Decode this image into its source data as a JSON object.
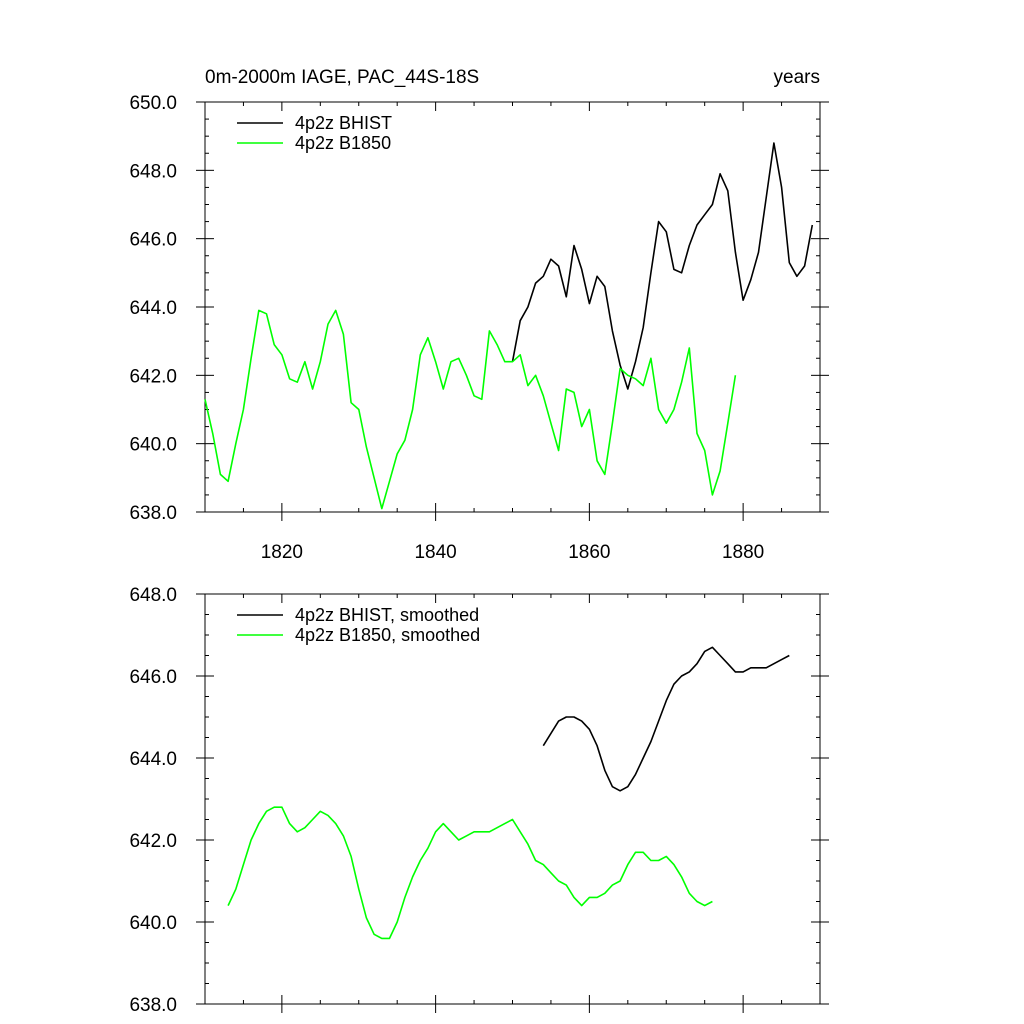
{
  "figure": {
    "title_left": "0m-2000m IAGE, PAC_44S-18S",
    "title_right": "years"
  },
  "chart_data": [
    {
      "type": "line",
      "title": "0m-2000m IAGE, PAC_44S-18S",
      "units": "years",
      "xlim": [
        1810,
        1890
      ],
      "ylim": [
        638,
        650
      ],
      "x_ticks": [
        "1820",
        "1840",
        "1860",
        "1880"
      ],
      "y_ticks": [
        "638.0",
        "640.0",
        "642.0",
        "644.0",
        "646.0",
        "648.0",
        "650.0"
      ],
      "grid": false,
      "legend_position": "top-left",
      "series": [
        {
          "name": "4p2z BHIST",
          "color": "#000000",
          "x": [
            1850,
            1851,
            1852,
            1853,
            1854,
            1855,
            1856,
            1857,
            1858,
            1859,
            1860,
            1861,
            1862,
            1863,
            1864,
            1865,
            1866,
            1867,
            1868,
            1869,
            1870,
            1871,
            1872,
            1873,
            1874,
            1875,
            1876,
            1877,
            1878,
            1879,
            1880,
            1881,
            1882,
            1883,
            1884,
            1885,
            1886,
            1887,
            1888,
            1889
          ],
          "y": [
            642.4,
            643.6,
            644.0,
            644.7,
            644.9,
            645.4,
            645.2,
            644.3,
            645.8,
            645.1,
            644.1,
            644.9,
            644.6,
            643.3,
            642.3,
            641.6,
            642.4,
            643.4,
            645.0,
            646.5,
            646.2,
            645.1,
            645.0,
            645.8,
            646.4,
            646.7,
            647.0,
            647.9,
            647.4,
            645.6,
            644.2,
            644.8,
            645.6,
            647.2,
            648.8,
            647.5,
            645.3,
            644.9,
            645.2,
            646.4
          ]
        },
        {
          "name": "4p2z B1850",
          "color": "#00ff00",
          "x": [
            1810,
            1811,
            1812,
            1813,
            1814,
            1815,
            1816,
            1817,
            1818,
            1819,
            1820,
            1821,
            1822,
            1823,
            1824,
            1825,
            1826,
            1827,
            1828,
            1829,
            1830,
            1831,
            1832,
            1833,
            1834,
            1835,
            1836,
            1837,
            1838,
            1839,
            1840,
            1841,
            1842,
            1843,
            1844,
            1845,
            1846,
            1847,
            1848,
            1849,
            1850,
            1851,
            1852,
            1853,
            1854,
            1855,
            1856,
            1857,
            1858,
            1859,
            1860,
            1861,
            1862,
            1863,
            1864,
            1865,
            1866,
            1867,
            1868,
            1869,
            1870,
            1871,
            1872,
            1873,
            1874,
            1875,
            1876,
            1877,
            1878,
            1879
          ],
          "y": [
            641.3,
            640.3,
            639.1,
            638.9,
            640.0,
            641.0,
            642.5,
            643.9,
            643.8,
            642.9,
            642.6,
            641.9,
            641.8,
            642.4,
            641.6,
            642.4,
            643.5,
            643.9,
            643.2,
            641.2,
            641.0,
            639.9,
            639.0,
            638.1,
            638.9,
            639.7,
            640.1,
            641.0,
            642.6,
            643.1,
            642.4,
            641.6,
            642.4,
            642.5,
            642.0,
            641.4,
            641.3,
            643.3,
            642.9,
            642.4,
            642.4,
            642.6,
            641.7,
            642.0,
            641.4,
            640.6,
            639.8,
            641.6,
            641.5,
            640.5,
            641.0,
            639.5,
            639.1,
            640.6,
            642.2,
            642.0,
            641.9,
            641.7,
            642.5,
            641.0,
            640.6,
            641.0,
            641.8,
            642.8,
            640.3,
            639.8,
            638.5,
            639.2,
            640.6,
            642.0
          ]
        }
      ]
    },
    {
      "type": "line",
      "xlim": [
        1810,
        1890
      ],
      "ylim": [
        638,
        648
      ],
      "y_ticks": [
        "638.0",
        "640.0",
        "642.0",
        "644.0",
        "646.0",
        "648.0"
      ],
      "grid": false,
      "legend_position": "top-left",
      "series": [
        {
          "name": "4p2z BHIST, smoothed",
          "color": "#000000",
          "x": [
            1854,
            1855,
            1856,
            1857,
            1858,
            1859,
            1860,
            1861,
            1862,
            1863,
            1864,
            1865,
            1866,
            1867,
            1868,
            1869,
            1870,
            1871,
            1872,
            1873,
            1874,
            1875,
            1876,
            1877,
            1878,
            1879,
            1880,
            1881,
            1882,
            1883,
            1884,
            1885,
            1886
          ],
          "y": [
            644.3,
            644.6,
            644.9,
            645.0,
            645.0,
            644.9,
            644.7,
            644.3,
            643.7,
            643.3,
            643.2,
            643.3,
            643.6,
            644.0,
            644.4,
            644.9,
            645.4,
            645.8,
            646.0,
            646.1,
            646.3,
            646.6,
            646.7,
            646.5,
            646.3,
            646.1,
            646.1,
            646.2,
            646.2,
            646.2,
            646.3,
            646.4,
            646.5
          ]
        },
        {
          "name": "4p2z B1850, smoothed",
          "color": "#00ff00",
          "x": [
            1813,
            1814,
            1815,
            1816,
            1817,
            1818,
            1819,
            1820,
            1821,
            1822,
            1823,
            1824,
            1825,
            1826,
            1827,
            1828,
            1829,
            1830,
            1831,
            1832,
            1833,
            1834,
            1835,
            1836,
            1837,
            1838,
            1839,
            1840,
            1841,
            1842,
            1843,
            1844,
            1845,
            1846,
            1847,
            1848,
            1849,
            1850,
            1851,
            1852,
            1853,
            1854,
            1855,
            1856,
            1857,
            1858,
            1859,
            1860,
            1861,
            1862,
            1863,
            1864,
            1865,
            1866,
            1867,
            1868,
            1869,
            1870,
            1871,
            1872,
            1873,
            1874,
            1875,
            1876
          ],
          "y": [
            640.4,
            640.8,
            641.4,
            642.0,
            642.4,
            642.7,
            642.8,
            642.8,
            642.4,
            642.2,
            642.3,
            642.5,
            642.7,
            642.6,
            642.4,
            642.1,
            641.6,
            640.8,
            640.1,
            639.7,
            639.6,
            639.6,
            640.0,
            640.6,
            641.1,
            641.5,
            641.8,
            642.2,
            642.4,
            642.2,
            642.0,
            642.1,
            642.2,
            642.2,
            642.2,
            642.3,
            642.4,
            642.5,
            642.2,
            641.9,
            641.5,
            641.4,
            641.2,
            641.0,
            640.9,
            640.6,
            640.4,
            640.6,
            640.6,
            640.7,
            640.9,
            641.0,
            641.4,
            641.7,
            641.7,
            641.5,
            641.5,
            641.6,
            641.4,
            641.1,
            640.7,
            640.5,
            640.4,
            640.5
          ]
        }
      ]
    }
  ]
}
